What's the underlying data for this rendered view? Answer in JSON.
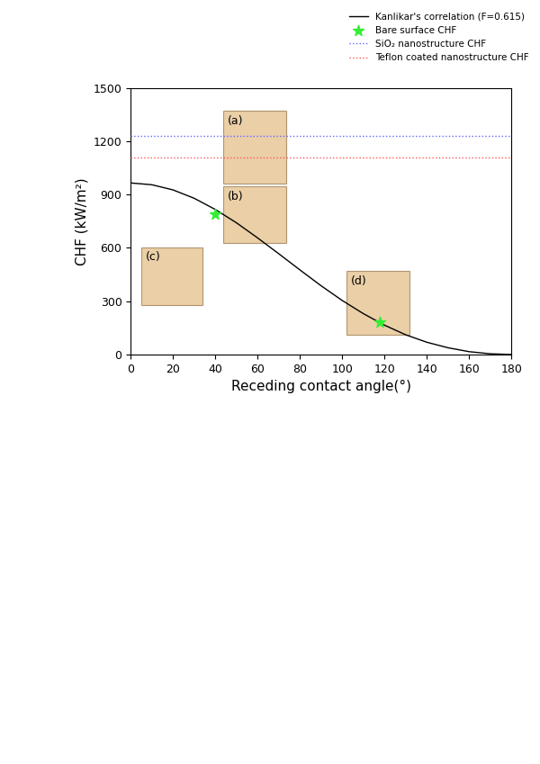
{
  "chart_data": {
    "type": "line",
    "xlabel": "Receding contact angle(°)",
    "ylabel": "CHF (kW/m²)",
    "xlim": [
      0,
      180
    ],
    "xticks": [
      0,
      20,
      40,
      60,
      80,
      100,
      120,
      140,
      160,
      180
    ],
    "ylim": [
      0,
      1500
    ],
    "yticks": [
      0,
      300,
      600,
      900,
      1200,
      1500
    ],
    "legend": "upper right",
    "grid": false,
    "annotations": [
      "(a)",
      "(b)",
      "(c)",
      "(d)"
    ],
    "series": [
      {
        "name": "Kanlikar's correlation (F=0.615)",
        "type": "line",
        "color": "#000000",
        "line_style": "solid",
        "x": [
          0,
          10,
          20,
          30,
          40,
          50,
          60,
          70,
          80,
          90,
          100,
          110,
          120,
          130,
          140,
          150,
          160,
          170,
          180
        ],
        "values": [
          965,
          955,
          926,
          879,
          816,
          741,
          656,
          567,
          476,
          387,
          304,
          230,
          165,
          111,
          69,
          38,
          16,
          4,
          0
        ]
      },
      {
        "name": "Bare surface CHF",
        "type": "scatter",
        "color": "#33ee33",
        "marker": "star",
        "x": [
          40,
          118
        ],
        "values": [
          790,
          182
        ]
      },
      {
        "name": "SiO₂ nanostructure CHF",
        "type": "line",
        "color": "#6666ff",
        "line_style": "dotted",
        "x": [
          0,
          180
        ],
        "values": [
          1230,
          1230
        ]
      },
      {
        "name": "Teflon coated nanostructure CHF",
        "type": "line",
        "color": "#ff5555",
        "line_style": "dotted",
        "x": [
          0,
          180
        ],
        "values": [
          1110,
          1110
        ]
      }
    ]
  }
}
